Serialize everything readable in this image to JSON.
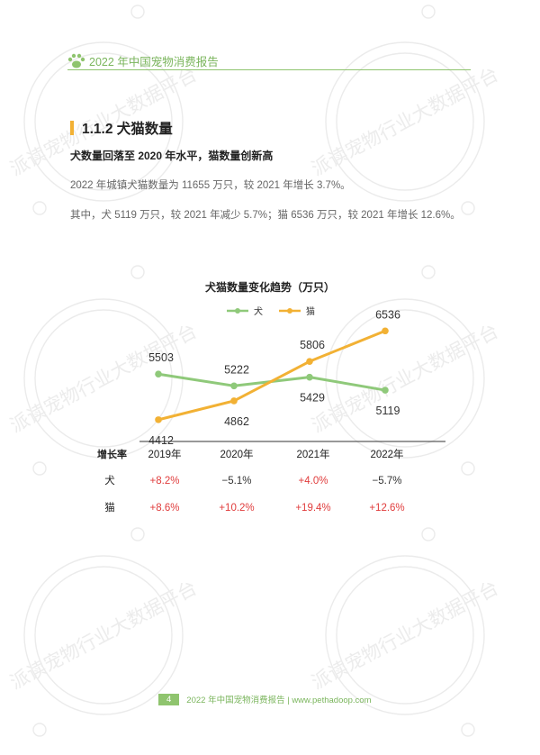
{
  "header": {
    "title": "2022 年中国宠物消费报告",
    "icon": "paw-icon",
    "color": "#8fc46e"
  },
  "section": {
    "number_title": "1.1.2 犬猫数量",
    "subtitle": "犬数量回落至 2020 年水平，猫数量创新高"
  },
  "paragraphs": [
    "2022 年城镇犬猫数量为 11655 万只，较 2021 年增长 3.7%。",
    "其中，犬 5119 万只，较 2021 年减少 5.7%；猫 6536 万只，较 2021 年增长 12.6%。"
  ],
  "watermark": "派读宠物行业大数据平台",
  "chart_data": {
    "type": "line",
    "title": "犬猫数量变化趋势（万只）",
    "categories": [
      "2019年",
      "2020年",
      "2021年",
      "2022年"
    ],
    "series": [
      {
        "name": "犬",
        "values": [
          5503,
          5222,
          5429,
          5119
        ],
        "color": "#8fc97a"
      },
      {
        "name": "猫",
        "values": [
          4412,
          4862,
          5806,
          6536
        ],
        "color": "#f2b134"
      }
    ],
    "ylim": [
      4000,
      6800
    ],
    "legend": "top-center",
    "grid": false,
    "growth_table": {
      "header": "增长率",
      "rows": [
        {
          "label": "犬",
          "values": [
            "+8.2%",
            "−5.1%",
            "+4.0%",
            "−5.7%"
          ]
        },
        {
          "label": "猫",
          "values": [
            "+8.6%",
            "+10.2%",
            "+19.4%",
            "+12.6%"
          ]
        }
      ]
    }
  },
  "colors": {
    "positive": "#e03c3c",
    "negative": "#333333"
  },
  "footer": {
    "page": "4",
    "text": "2022 年中国宠物消费报告 | www.pethadoop.com"
  }
}
